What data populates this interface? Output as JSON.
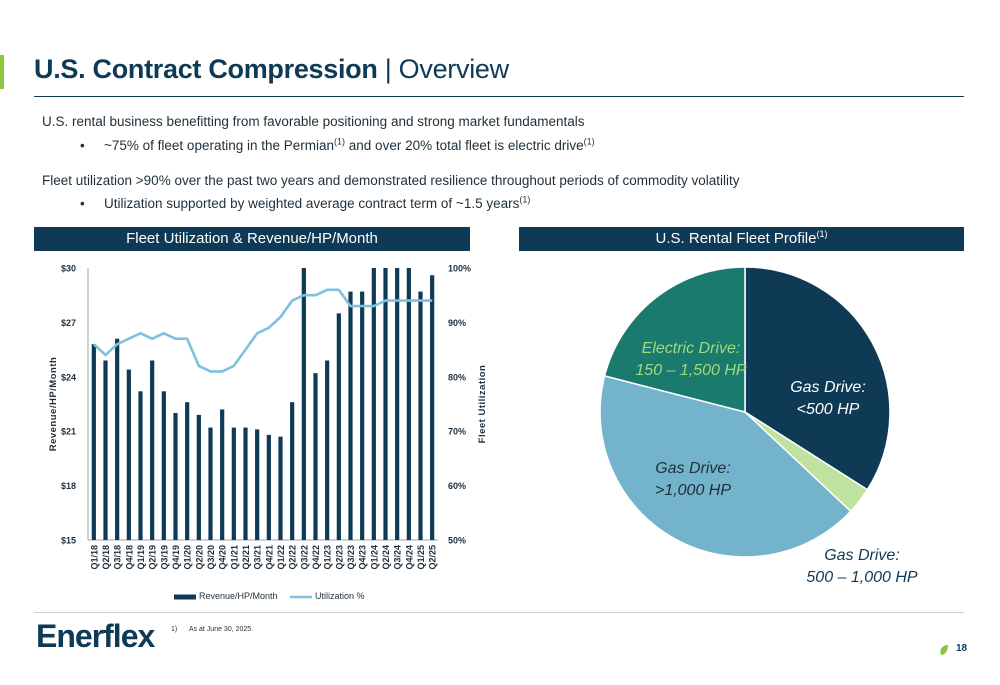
{
  "header": {
    "title_bold": "U.S. Contract Compression",
    "title_rest": " | Overview",
    "accent_color": "#8cc63f",
    "brand_color": "#0e3a55"
  },
  "body": {
    "para1": "U.S. rental business benefitting from favorable positioning and strong market fundamentals",
    "bullet1_a": "~75% of fleet operating in the Permian",
    "bullet1_sup1": "(1)",
    "bullet1_b": " and over 20% total fleet is electric drive",
    "bullet1_sup2": "(1)",
    "para2": "Fleet utilization >90% over the past two years and demonstrated resilience throughout periods of commodity volatility",
    "bullet2_a": "Utilization supported by weighted average contract term of ~1.5 years",
    "bullet2_sup": "(1)",
    "bullet_glyph": "•"
  },
  "panels": {
    "left_title": "Fleet Utilization & Revenue/HP/Month",
    "right_title": "U.S. Rental Fleet Profile",
    "right_title_sup": "(1)"
  },
  "footer": {
    "logo": "Enerflex",
    "footnote_num": "1)",
    "footnote_text": "As at June 30, 2025.",
    "page_number": "18"
  },
  "chart_data": [
    {
      "type": "bar",
      "categories": [
        "Q1/18",
        "Q2/18",
        "Q3/18",
        "Q4/18",
        "Q1/19",
        "Q2/19",
        "Q3/19",
        "Q4/19",
        "Q1/20",
        "Q2/20",
        "Q3/20",
        "Q4/20",
        "Q1/21",
        "Q2/21",
        "Q3/21",
        "Q4/21",
        "Q1/22",
        "Q2/22",
        "Q3/22",
        "Q4/22",
        "Q1/23",
        "Q2/23",
        "Q3/23",
        "Q4/23",
        "Q1/24",
        "Q2/24",
        "Q3/24",
        "Q4/24",
        "Q1/25",
        "Q2/25"
      ],
      "series": [
        {
          "name": "Revenue/HP/Month",
          "kind": "bar",
          "axis": "left",
          "color": "#0e3a55",
          "values": [
            25.8,
            24.9,
            26.1,
            24.4,
            23.2,
            24.9,
            23.2,
            22.0,
            22.6,
            21.9,
            21.2,
            22.2,
            21.2,
            21.2,
            21.1,
            20.8,
            20.7,
            22.6,
            30.0,
            24.2,
            24.9,
            27.5,
            28.7,
            28.7,
            30.0,
            30.0,
            30.0,
            30.0,
            28.7,
            29.6
          ]
        },
        {
          "name": "Utilization %",
          "kind": "line",
          "axis": "right",
          "color": "#7ec1de",
          "values": [
            86,
            84,
            86,
            87,
            88,
            87,
            88,
            87,
            87,
            82,
            81,
            81,
            82,
            85,
            88,
            89,
            91,
            94,
            95,
            95,
            96,
            96,
            93,
            93,
            93,
            94,
            94,
            94,
            94,
            94
          ]
        }
      ],
      "yleft": {
        "ticks": [
          "$15",
          "$18",
          "$21",
          "$24",
          "$27",
          "$30"
        ],
        "min": 15,
        "max": 30,
        "label": "Revenue/HP/Month"
      },
      "yright": {
        "ticks": [
          "50%",
          "60%",
          "70%",
          "80%",
          "90%",
          "100%"
        ],
        "min": 50,
        "max": 100,
        "label": "Fleet Utilization"
      },
      "legend": {
        "position": "bottom",
        "items": [
          "Revenue/HP/Month",
          "Utilization %"
        ]
      },
      "grid": false
    },
    {
      "type": "pie",
      "slices": [
        {
          "label_line1": "Gas Drive:",
          "label_line2": "<500 HP",
          "value": 34,
          "color": "#0e3a55",
          "label_color": "#ffffff"
        },
        {
          "label_line1": "Gas Drive:",
          "label_line2": "500 – 1,000 HP",
          "value": 3,
          "color": "#bfe39e",
          "label_color": "#1f2f3a"
        },
        {
          "label_line1": "Gas Drive:",
          "label_line2": ">1,000 HP",
          "value": 42,
          "color": "#74b3cc",
          "label_color": "#1f2f3a"
        },
        {
          "label_line1": "Electric Drive:",
          "label_line2": "150 – 1,500 HP",
          "value": 21,
          "color": "#1a7a6e",
          "label_color": "#9fdb7a"
        }
      ]
    }
  ]
}
